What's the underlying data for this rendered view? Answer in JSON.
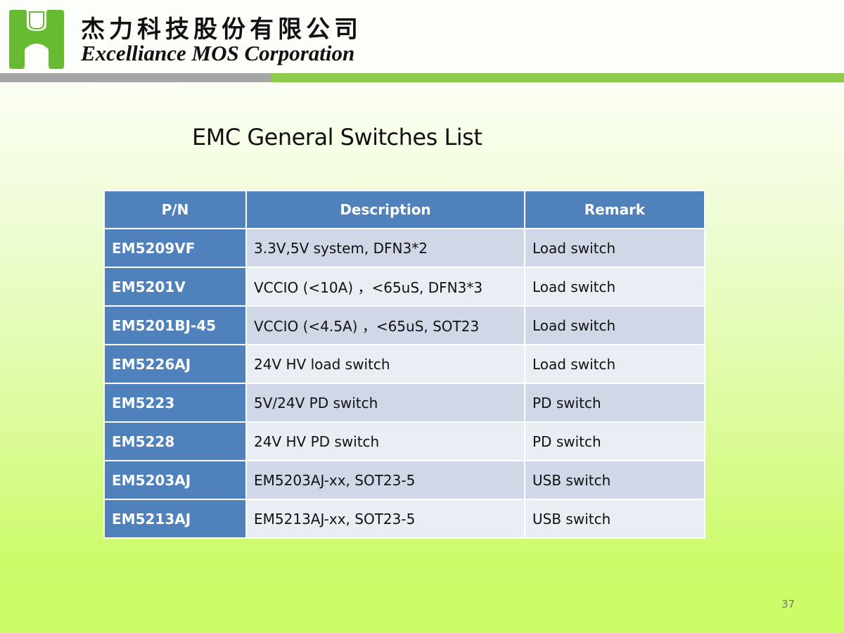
{
  "header": {
    "company_cn": "杰力科技股份有限公司",
    "company_en": "Excelliance MOS Corporation",
    "logo_color": "#66bb33"
  },
  "title": "EMC General Switches List",
  "table": {
    "headers": [
      "P/N",
      "Description",
      "Remark"
    ],
    "rows": [
      {
        "pn": "EM5209VF",
        "desc": "3.3V,5V system, DFN3*2",
        "remark": "Load switch"
      },
      {
        "pn": "EM5201V",
        "desc": "VCCIO (<10A)  ，<65uS, DFN3*3",
        "remark": "Load switch"
      },
      {
        "pn": "EM5201BJ-45",
        "desc": "VCCIO (<4.5A)  ，<65uS, SOT23",
        "remark": "Load switch"
      },
      {
        "pn": "EM5226AJ",
        "desc": "24V HV load switch",
        "remark": "Load switch"
      },
      {
        "pn": "EM5223",
        "desc": "5V/24V PD switch",
        "remark": "PD switch"
      },
      {
        "pn": "EM5228",
        "desc": "24V HV PD switch",
        "remark": "PD switch"
      },
      {
        "pn": "EM5203AJ",
        "desc": "EM5203AJ-xx, SOT23-5",
        "remark": "USB switch"
      },
      {
        "pn": "EM5213AJ",
        "desc": "EM5213AJ-xx, SOT23-5",
        "remark": "USB switch"
      }
    ]
  },
  "page_number": "37"
}
